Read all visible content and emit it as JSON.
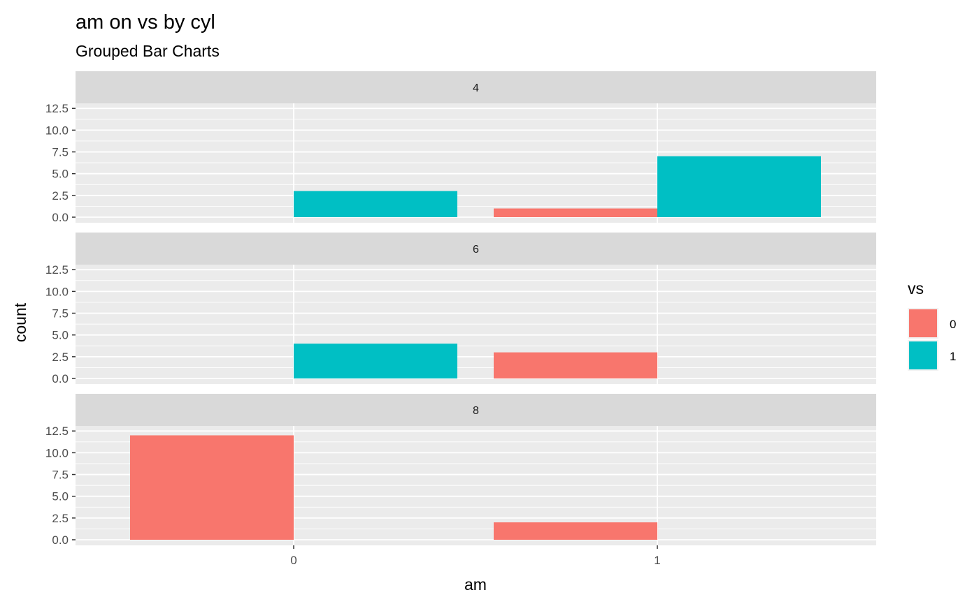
{
  "chart_data": {
    "type": "bar",
    "layout": "faceted-grouped",
    "title": "am on vs by cyl",
    "subtitle": "Grouped Bar Charts",
    "xlabel": "am",
    "ylabel": "count",
    "categories": [
      "0",
      "1"
    ],
    "ylim": [
      0,
      13
    ],
    "yticks": [
      "0.0",
      "2.5",
      "5.0",
      "7.5",
      "10.0",
      "12.5"
    ],
    "grid": true,
    "legend": {
      "title": "vs",
      "placement": "right",
      "entries": [
        {
          "label": "0",
          "color": "#F8766D"
        },
        {
          "label": "1",
          "color": "#00BFC4"
        }
      ]
    },
    "facets": [
      {
        "label": "4",
        "series": [
          {
            "name": "0",
            "values": [
              0,
              1
            ]
          },
          {
            "name": "1",
            "values": [
              3,
              7
            ]
          }
        ]
      },
      {
        "label": "6",
        "series": [
          {
            "name": "0",
            "values": [
              0,
              3
            ]
          },
          {
            "name": "1",
            "values": [
              4,
              0
            ]
          }
        ]
      },
      {
        "label": "8",
        "series": [
          {
            "name": "0",
            "values": [
              12,
              2
            ]
          },
          {
            "name": "1",
            "values": [
              0,
              0
            ]
          }
        ]
      }
    ]
  },
  "colors": {
    "panel_bg": "#EBEBEB",
    "strip_bg": "#D9D9D9",
    "grid": "#FFFFFF",
    "vs0": "#F8766D",
    "vs1": "#00BFC4"
  }
}
